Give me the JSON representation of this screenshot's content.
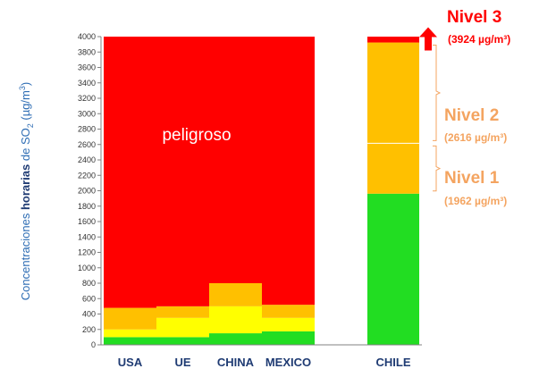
{
  "chart_data": {
    "type": "bar",
    "stacked": true,
    "ylabel_parts": [
      "Concentraciones ",
      "horarias",
      " de SO",
      "2",
      " (µg/m",
      "3",
      ")"
    ],
    "ylim": [
      0,
      4000
    ],
    "yticks": [
      0,
      200,
      400,
      600,
      800,
      1000,
      1200,
      1400,
      1600,
      1800,
      2000,
      2200,
      2400,
      2600,
      2800,
      3000,
      3200,
      3400,
      3600,
      3800,
      4000
    ],
    "categories": [
      "USA",
      "UE",
      "CHINA",
      "MEXICO",
      "CHILE"
    ],
    "colors": {
      "green": "#22dd22",
      "yellow": "#ffff00",
      "orange": "#ffc000",
      "red": "#ff0000",
      "level1": "#f4a460",
      "level3": "#ff0000"
    },
    "bars": [
      {
        "category": "USA",
        "segments": [
          {
            "color": "green",
            "from": 0,
            "to": 100
          },
          {
            "color": "yellow",
            "from": 100,
            "to": 200
          },
          {
            "color": "orange",
            "from": 200,
            "to": 480
          },
          {
            "color": "red",
            "from": 480,
            "to": 4000
          }
        ]
      },
      {
        "category": "UE",
        "segments": [
          {
            "color": "green",
            "from": 0,
            "to": 100
          },
          {
            "color": "yellow",
            "from": 100,
            "to": 350
          },
          {
            "color": "orange",
            "from": 350,
            "to": 500
          },
          {
            "color": "red",
            "from": 500,
            "to": 4000
          }
        ]
      },
      {
        "category": "CHINA",
        "segments": [
          {
            "color": "green",
            "from": 0,
            "to": 150
          },
          {
            "color": "yellow",
            "from": 150,
            "to": 500
          },
          {
            "color": "orange",
            "from": 500,
            "to": 800
          },
          {
            "color": "red",
            "from": 800,
            "to": 4000
          }
        ]
      },
      {
        "category": "MEXICO",
        "segments": [
          {
            "color": "green",
            "from": 0,
            "to": 175
          },
          {
            "color": "yellow",
            "from": 175,
            "to": 350
          },
          {
            "color": "orange",
            "from": 350,
            "to": 520
          },
          {
            "color": "red",
            "from": 520,
            "to": 4000
          }
        ]
      },
      {
        "category": "CHILE",
        "segments": [
          {
            "color": "green",
            "from": 0,
            "to": 1962
          },
          {
            "color": "orange",
            "from": 1962,
            "to": 2616
          },
          {
            "color": "orange",
            "from": 2616,
            "to": 3924
          },
          {
            "color": "red",
            "from": 3924,
            "to": 4000
          }
        ]
      }
    ],
    "annotations": {
      "region_label": "peligroso",
      "levels": [
        {
          "title": "Nivel 3",
          "value_text": "(3924 µg/m³)",
          "value": 3924,
          "color": "level3",
          "marker": "arrow"
        },
        {
          "title": "Nivel 2",
          "value_text": "(2616 µg/m³)",
          "value": 2616,
          "color": "level1",
          "marker": "bracket"
        },
        {
          "title": "Nivel 1",
          "value_text": "(1962 µg/m³)",
          "value": 1962,
          "color": "level1",
          "marker": "bracket"
        }
      ]
    }
  }
}
